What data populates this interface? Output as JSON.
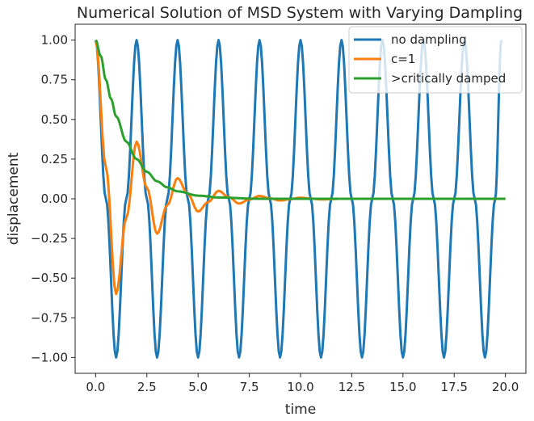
{
  "chart_data": {
    "type": "line",
    "title": "Numerical Solution of MSD System with Varying Dampling",
    "xlabel": "time",
    "ylabel": "displacement",
    "xlim": [
      -1.0,
      21.0
    ],
    "ylim": [
      -1.1,
      1.1
    ],
    "xticks": [
      0.0,
      2.5,
      5.0,
      7.5,
      10.0,
      12.5,
      15.0,
      17.5,
      20.0
    ],
    "xtick_labels": [
      "0.0",
      "2.5",
      "5.0",
      "7.5",
      "10.0",
      "12.5",
      "15.0",
      "17.5",
      "20.0"
    ],
    "yticks": [
      -1.0,
      -0.75,
      -0.5,
      -0.25,
      0.0,
      0.25,
      0.5,
      0.75,
      1.0
    ],
    "ytick_labels": [
      "−1.00",
      "−0.75",
      "−0.50",
      "−0.25",
      "0.00",
      "0.25",
      "0.50",
      "0.75",
      "1.00"
    ],
    "grid": false,
    "legend_position": "top-right",
    "series": [
      {
        "name": "no dampling",
        "color": "#1f77b4",
        "x": [
          0.0,
          0.5,
          1.0,
          1.5,
          2.0,
          2.5,
          3.0,
          3.5,
          4.0,
          4.5,
          5.0,
          5.5,
          6.0,
          6.5,
          7.0,
          7.5,
          8.0,
          8.5,
          9.0,
          9.5,
          10.0,
          10.5,
          11.0,
          11.5,
          12.0,
          12.5,
          13.0,
          13.5,
          14.0,
          14.5,
          15.0,
          15.5,
          16.0,
          16.5,
          17.0,
          17.5,
          18.0,
          18.5,
          19.0,
          19.5,
          19.8
        ],
        "y": [
          1.0,
          0.0,
          -1.0,
          0.0,
          1.0,
          0.0,
          -1.0,
          0.0,
          1.0,
          0.0,
          -1.0,
          0.0,
          1.0,
          0.0,
          -1.0,
          0.0,
          1.0,
          0.0,
          -1.0,
          0.0,
          1.0,
          0.0,
          -1.0,
          0.0,
          1.0,
          0.0,
          -1.0,
          0.0,
          1.0,
          0.0,
          -1.0,
          0.0,
          1.0,
          0.0,
          -1.0,
          0.0,
          1.0,
          0.0,
          -1.0,
          0.0,
          1.0
        ]
      },
      {
        "name": "c=1",
        "color": "#ff7f0e",
        "x": [
          0.0,
          0.5,
          1.0,
          1.5,
          2.0,
          2.5,
          3.0,
          3.5,
          4.0,
          4.5,
          5.0,
          5.5,
          6.0,
          6.5,
          7.0,
          7.5,
          8.0,
          8.5,
          9.0,
          9.5,
          10.0,
          10.5,
          11.0,
          12.0,
          14.0,
          16.0,
          18.0,
          20.0
        ],
        "y": [
          1.0,
          0.2,
          -0.6,
          -0.12,
          0.36,
          0.07,
          -0.22,
          -0.04,
          0.13,
          0.03,
          -0.08,
          -0.02,
          0.05,
          0.01,
          -0.03,
          -0.005,
          0.018,
          0.003,
          -0.011,
          -0.002,
          0.007,
          0.001,
          -0.004,
          0.0,
          0.0,
          0.0,
          0.0,
          0.0
        ]
      },
      {
        "name": ">critically damped",
        "color": "#2ca02c",
        "x": [
          0.0,
          0.25,
          0.5,
          0.75,
          1.0,
          1.5,
          2.0,
          2.5,
          3.0,
          3.5,
          4.0,
          5.0,
          6.0,
          8.0,
          10.0,
          15.0,
          20.0
        ],
        "y": [
          1.0,
          0.9,
          0.75,
          0.63,
          0.52,
          0.36,
          0.25,
          0.17,
          0.11,
          0.072,
          0.047,
          0.02,
          0.008,
          0.0,
          0.0,
          0.0,
          0.0
        ]
      }
    ]
  }
}
